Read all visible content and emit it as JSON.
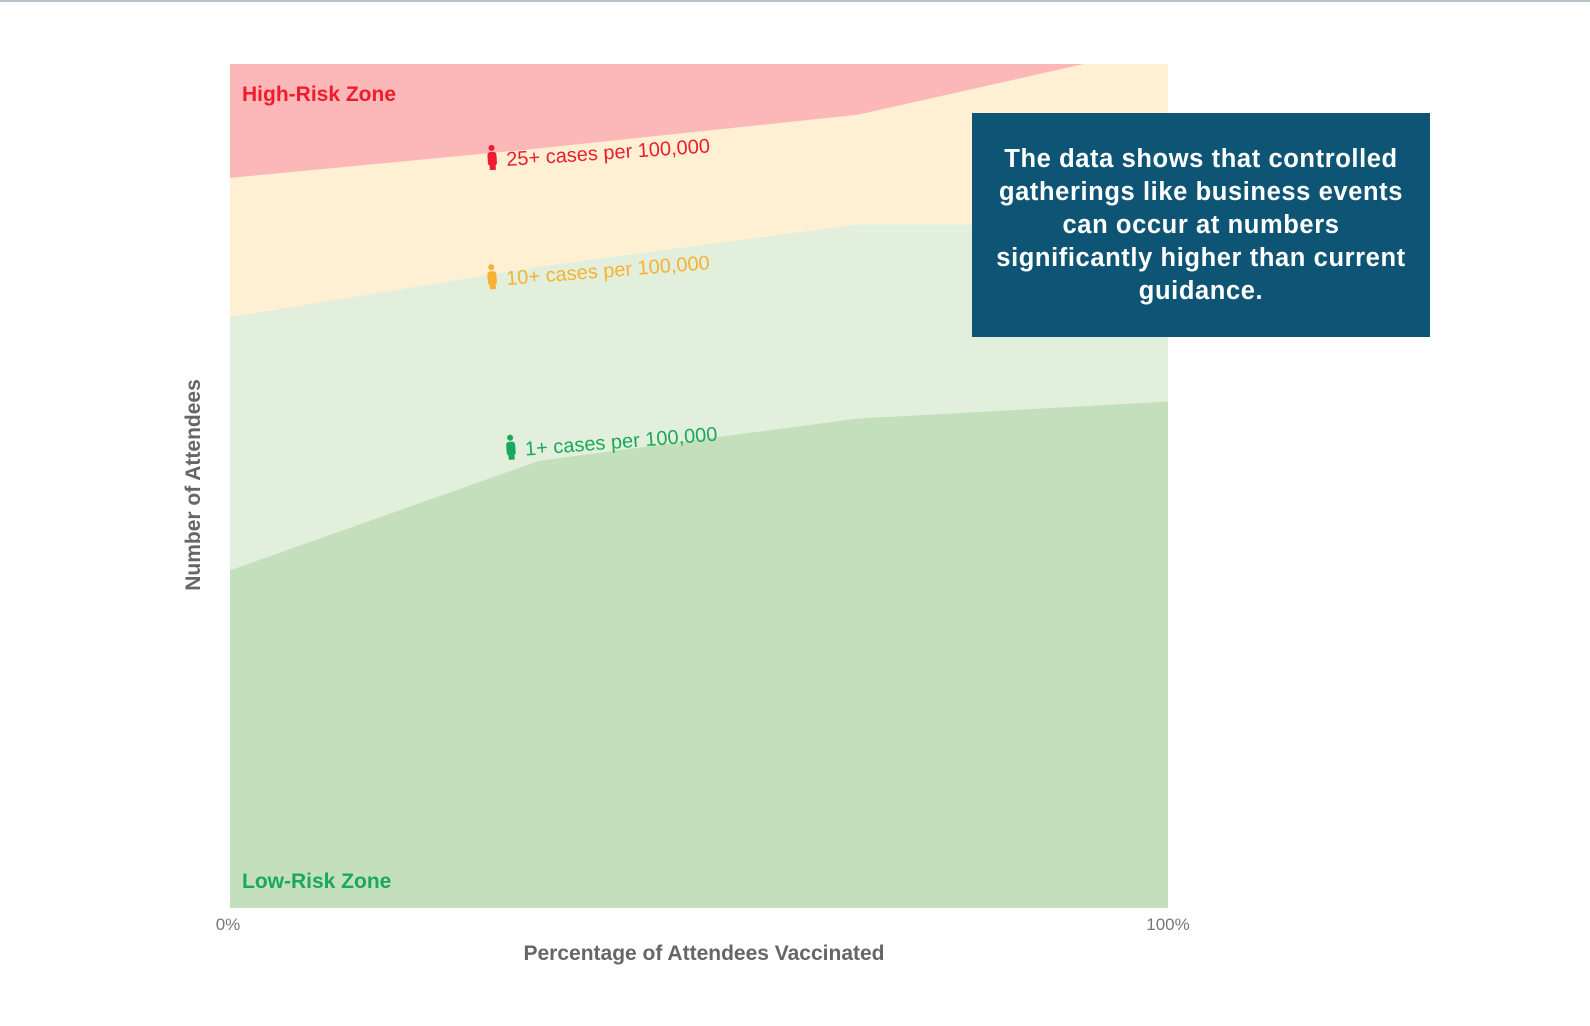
{
  "callout": {
    "text": "The data shows that controlled gatherings like business events can occur at numbers significantly higher than current guidance."
  },
  "chart_data": {
    "type": "area",
    "title": "",
    "xlabel": "Percentage of Attendees Vaccinated",
    "ylabel": "Number of Attendees",
    "xlim": [
      0,
      100
    ],
    "ylim": [
      0,
      100
    ],
    "x_ticks": [
      "0%",
      "100%"
    ],
    "grid": false,
    "legend": "none",
    "zone_labels": {
      "top": "High-Risk Zone",
      "bottom": "Low-Risk Zone"
    },
    "colors": {
      "high_risk": "#fcb8b9",
      "moderate": "#fff0d3",
      "low_moderate": "#e2efdc",
      "low": "#c4dfbc",
      "high_label": "#ee1c2d",
      "moderate_label": "#f8b133",
      "low_label": "#1aa85a"
    },
    "series": [
      {
        "name": "1+ cases per 100,000",
        "color": "#1aa85a",
        "x": [
          0,
          33,
          67,
          100
        ],
        "values": [
          40,
          53,
          58,
          60
        ]
      },
      {
        "name": "10+ cases per 100,000",
        "color": "#f8b133",
        "x": [
          0,
          33,
          67,
          100
        ],
        "values": [
          70,
          76,
          81,
          81
        ]
      },
      {
        "name": "25+ cases per 100,000",
        "color": "#ee1c2d",
        "x": [
          0,
          33,
          67,
          91
        ],
        "values": [
          86.5,
          90,
          94,
          100
        ]
      }
    ]
  }
}
